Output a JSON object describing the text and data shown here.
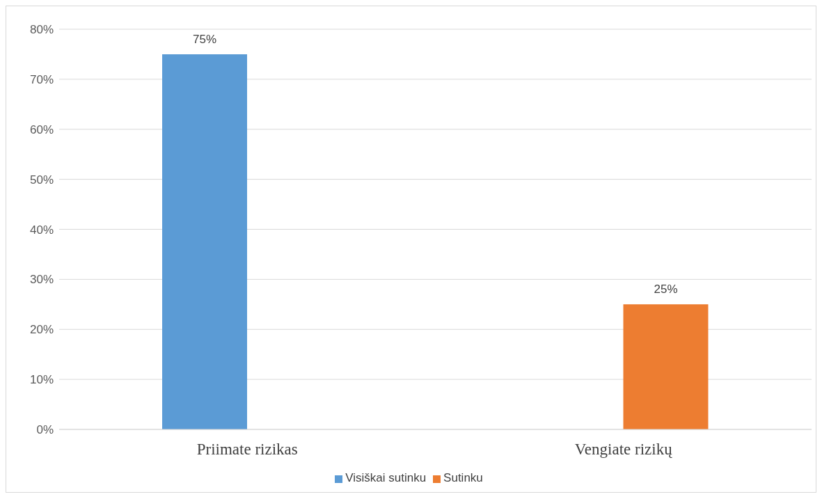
{
  "chart_data": {
    "type": "bar",
    "categories": [
      "Priimate rizikas",
      "Vengiate rizikų"
    ],
    "series": [
      {
        "name": "Visiškai sutinku",
        "color": "#5b9bd5",
        "values": [
          75,
          null
        ],
        "value_labels": [
          "75%",
          null
        ]
      },
      {
        "name": "Sutinku",
        "color": "#ed7d31",
        "values": [
          null,
          25
        ],
        "value_labels": [
          null,
          "25%"
        ]
      }
    ],
    "ylim": [
      0,
      80
    ],
    "yticks": [
      {
        "value": 0,
        "label": "0%"
      },
      {
        "value": 10,
        "label": "10%"
      },
      {
        "value": 20,
        "label": "20%"
      },
      {
        "value": 30,
        "label": "30%"
      },
      {
        "value": 40,
        "label": "40%"
      },
      {
        "value": 50,
        "label": "50%"
      },
      {
        "value": 60,
        "label": "60%"
      },
      {
        "value": 70,
        "label": "70%"
      },
      {
        "value": 80,
        "label": "80%"
      }
    ],
    "grid": "y",
    "legend": "bottom"
  }
}
